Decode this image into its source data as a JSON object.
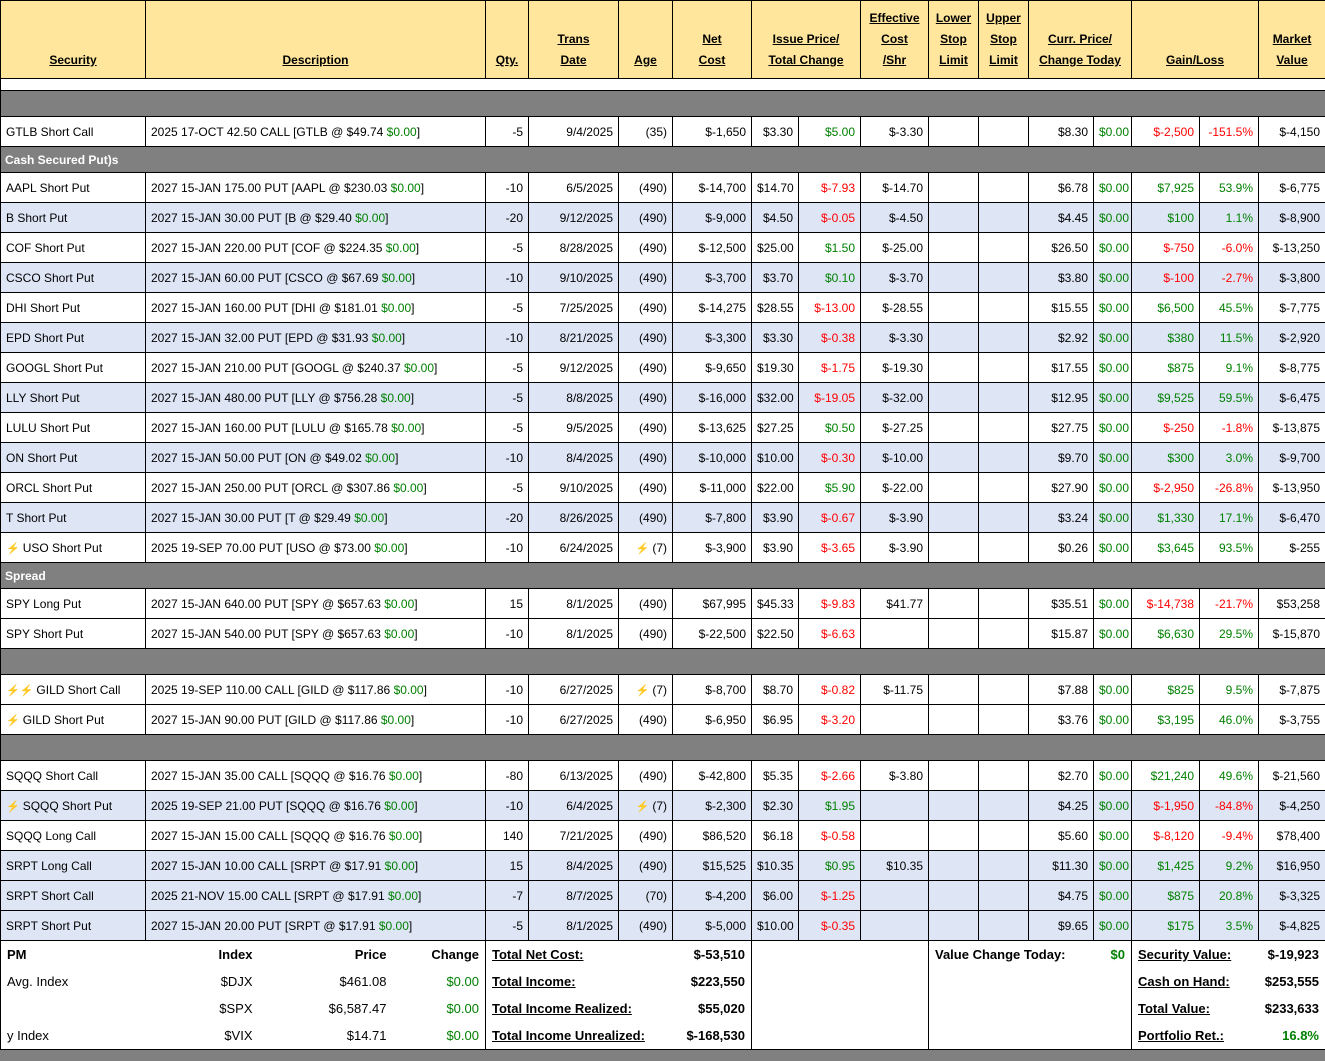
{
  "columns": {
    "security": "Security",
    "description": "Description",
    "qty": "Qty.",
    "trans_date": "Trans\nDate",
    "age": "Age",
    "net_cost": "Net\nCost",
    "issue_price": "Issue Price/\nTotal Change",
    "eff_cost": "Effective\nCost\n/Shr",
    "lower_stop": "Lower\nStop\nLimit",
    "upper_stop": "Upper\nStop\nLimit",
    "curr_price": "Curr. Price/\nChange Today",
    "gain_loss": "Gain/Loss",
    "market_value": "Market\nValue"
  },
  "icons": {
    "alert": "lightning-bolt-icon"
  },
  "colors": {
    "header_bg": "#FFE69C",
    "section_bg": "#808080",
    "row_alt_bg": "#DEE6F6",
    "positive": "#008000",
    "negative": "#FF0000",
    "bolt": "#F5A623"
  },
  "body": [
    {
      "type": "spacer",
      "label": ""
    },
    {
      "type": "section",
      "label": ""
    },
    {
      "type": "row",
      "shade": "w",
      "bolts": 0,
      "sec": "GTLB Short Call",
      "d1": "2025 17-OCT 42.50 CALL [GTLB @ $49.74 ",
      "d2": "$0.00",
      "d3": "]",
      "qty": "-5",
      "date": "9/4/2025",
      "agebolt": false,
      "age": "(35)",
      "net": "$-1,650",
      "ip": "$3.30",
      "tc": "$5.00",
      "ec": "$-3.30",
      "ls": "",
      "us": "",
      "cp": "$8.30",
      "ct": "$0.00",
      "gl": "$-2,500",
      "glp": "-151.5%",
      "mv": "$-4,150"
    },
    {
      "type": "section",
      "label": "Cash Secured Put)s"
    },
    {
      "type": "row",
      "shade": "w",
      "bolts": 0,
      "sec": "AAPL Short Put",
      "d1": "2027 15-JAN 175.00 PUT [AAPL @ $230.03 ",
      "d2": "$0.00",
      "d3": "]",
      "qty": "-10",
      "date": "6/5/2025",
      "agebolt": false,
      "age": "(490)",
      "net": "$-14,700",
      "ip": "$14.70",
      "tc": "$-7.93",
      "ec": "$-14.70",
      "ls": "",
      "us": "",
      "cp": "$6.78",
      "ct": "$0.00",
      "gl": "$7,925",
      "glp": "53.9%",
      "mv": "$-6,775"
    },
    {
      "type": "row",
      "shade": "b",
      "bolts": 0,
      "sec": "B Short Put",
      "d1": "2027 15-JAN 30.00 PUT [B @ $29.40 ",
      "d2": "$0.00",
      "d3": "]",
      "qty": "-20",
      "date": "9/12/2025",
      "agebolt": false,
      "age": "(490)",
      "net": "$-9,000",
      "ip": "$4.50",
      "tc": "$-0.05",
      "ec": "$-4.50",
      "ls": "",
      "us": "",
      "cp": "$4.45",
      "ct": "$0.00",
      "gl": "$100",
      "glp": "1.1%",
      "mv": "$-8,900"
    },
    {
      "type": "row",
      "shade": "w",
      "bolts": 0,
      "sec": "COF Short Put",
      "d1": "2027 15-JAN 220.00 PUT [COF @ $224.35 ",
      "d2": "$0.00",
      "d3": "]",
      "qty": "-5",
      "date": "8/28/2025",
      "agebolt": false,
      "age": "(490)",
      "net": "$-12,500",
      "ip": "$25.00",
      "tc": "$1.50",
      "ec": "$-25.00",
      "ls": "",
      "us": "",
      "cp": "$26.50",
      "ct": "$0.00",
      "gl": "$-750",
      "glp": "-6.0%",
      "mv": "$-13,250"
    },
    {
      "type": "row",
      "shade": "b",
      "bolts": 0,
      "sec": "CSCO Short Put",
      "d1": "2027 15-JAN 60.00 PUT [CSCO @ $67.69 ",
      "d2": "$0.00",
      "d3": "]",
      "qty": "-10",
      "date": "9/10/2025",
      "agebolt": false,
      "age": "(490)",
      "net": "$-3,700",
      "ip": "$3.70",
      "tc": "$0.10",
      "ec": "$-3.70",
      "ls": "",
      "us": "",
      "cp": "$3.80",
      "ct": "$0.00",
      "gl": "$-100",
      "glp": "-2.7%",
      "mv": "$-3,800"
    },
    {
      "type": "row",
      "shade": "w",
      "bolts": 0,
      "sec": "DHI Short Put",
      "d1": "2027 15-JAN 160.00 PUT [DHI @ $181.01 ",
      "d2": "$0.00",
      "d3": "]",
      "qty": "-5",
      "date": "7/25/2025",
      "agebolt": false,
      "age": "(490)",
      "net": "$-14,275",
      "ip": "$28.55",
      "tc": "$-13.00",
      "ec": "$-28.55",
      "ls": "",
      "us": "",
      "cp": "$15.55",
      "ct": "$0.00",
      "gl": "$6,500",
      "glp": "45.5%",
      "mv": "$-7,775"
    },
    {
      "type": "row",
      "shade": "b",
      "bolts": 0,
      "sec": "EPD Short Put",
      "d1": "2027 15-JAN 32.00 PUT [EPD @ $31.93 ",
      "d2": "$0.00",
      "d3": "]",
      "qty": "-10",
      "date": "8/21/2025",
      "agebolt": false,
      "age": "(490)",
      "net": "$-3,300",
      "ip": "$3.30",
      "tc": "$-0.38",
      "ec": "$-3.30",
      "ls": "",
      "us": "",
      "cp": "$2.92",
      "ct": "$0.00",
      "gl": "$380",
      "glp": "11.5%",
      "mv": "$-2,920"
    },
    {
      "type": "row",
      "shade": "w",
      "bolts": 0,
      "sec": "GOOGL Short Put",
      "d1": "2027 15-JAN 210.00 PUT [GOOGL @ $240.37 ",
      "d2": "$0.00",
      "d3": "]",
      "qty": "-5",
      "date": "9/12/2025",
      "agebolt": false,
      "age": "(490)",
      "net": "$-9,650",
      "ip": "$19.30",
      "tc": "$-1.75",
      "ec": "$-19.30",
      "ls": "",
      "us": "",
      "cp": "$17.55",
      "ct": "$0.00",
      "gl": "$875",
      "glp": "9.1%",
      "mv": "$-8,775"
    },
    {
      "type": "row",
      "shade": "b",
      "bolts": 0,
      "sec": "LLY Short Put",
      "d1": "2027 15-JAN 480.00 PUT [LLY @ $756.28 ",
      "d2": "$0.00",
      "d3": "]",
      "qty": "-5",
      "date": "8/8/2025",
      "agebolt": false,
      "age": "(490)",
      "net": "$-16,000",
      "ip": "$32.00",
      "tc": "$-19.05",
      "ec": "$-32.00",
      "ls": "",
      "us": "",
      "cp": "$12.95",
      "ct": "$0.00",
      "gl": "$9,525",
      "glp": "59.5%",
      "mv": "$-6,475"
    },
    {
      "type": "row",
      "shade": "w",
      "bolts": 0,
      "sec": "LULU Short Put",
      "d1": "2027 15-JAN 160.00 PUT [LULU @ $165.78 ",
      "d2": "$0.00",
      "d3": "]",
      "qty": "-5",
      "date": "9/5/2025",
      "agebolt": false,
      "age": "(490)",
      "net": "$-13,625",
      "ip": "$27.25",
      "tc": "$0.50",
      "ec": "$-27.25",
      "ls": "",
      "us": "",
      "cp": "$27.75",
      "ct": "$0.00",
      "gl": "$-250",
      "glp": "-1.8%",
      "mv": "$-13,875"
    },
    {
      "type": "row",
      "shade": "b",
      "bolts": 0,
      "sec": "ON Short Put",
      "d1": "2027 15-JAN 50.00 PUT [ON @ $49.02 ",
      "d2": "$0.00",
      "d3": "]",
      "qty": "-10",
      "date": "8/4/2025",
      "agebolt": false,
      "age": "(490)",
      "net": "$-10,000",
      "ip": "$10.00",
      "tc": "$-0.30",
      "ec": "$-10.00",
      "ls": "",
      "us": "",
      "cp": "$9.70",
      "ct": "$0.00",
      "gl": "$300",
      "glp": "3.0%",
      "mv": "$-9,700"
    },
    {
      "type": "row",
      "shade": "w",
      "bolts": 0,
      "sec": "ORCL Short Put",
      "d1": "2027 15-JAN 250.00 PUT [ORCL @ $307.86 ",
      "d2": "$0.00",
      "d3": "]",
      "qty": "-5",
      "date": "9/10/2025",
      "agebolt": false,
      "age": "(490)",
      "net": "$-11,000",
      "ip": "$22.00",
      "tc": "$5.90",
      "ec": "$-22.00",
      "ls": "",
      "us": "",
      "cp": "$27.90",
      "ct": "$0.00",
      "gl": "$-2,950",
      "glp": "-26.8%",
      "mv": "$-13,950"
    },
    {
      "type": "row",
      "shade": "b",
      "bolts": 0,
      "sec": "T Short Put",
      "d1": "2027 15-JAN 30.00 PUT [T @ $29.49 ",
      "d2": "$0.00",
      "d3": "]",
      "qty": "-20",
      "date": "8/26/2025",
      "agebolt": false,
      "age": "(490)",
      "net": "$-7,800",
      "ip": "$3.90",
      "tc": "$-0.67",
      "ec": "$-3.90",
      "ls": "",
      "us": "",
      "cp": "$3.24",
      "ct": "$0.00",
      "gl": "$1,330",
      "glp": "17.1%",
      "mv": "$-6,470"
    },
    {
      "type": "row",
      "shade": "w",
      "bolts": 1,
      "sec": "USO Short Put",
      "d1": "2025 19-SEP 70.00 PUT [USO @ $73.00 ",
      "d2": "$0.00",
      "d3": "]",
      "qty": "-10",
      "date": "6/24/2025",
      "agebolt": true,
      "age": "(7)",
      "net": "$-3,900",
      "ip": "$3.90",
      "tc": "$-3.65",
      "ec": "$-3.90",
      "ls": "",
      "us": "",
      "cp": "$0.26",
      "ct": "$0.00",
      "gl": "$3,645",
      "glp": "93.5%",
      "mv": "$-255"
    },
    {
      "type": "section",
      "label": "Spread"
    },
    {
      "type": "row",
      "shade": "w",
      "bolts": 0,
      "sec": "SPY Long Put",
      "d1": "2027 15-JAN 640.00 PUT [SPY @ $657.63 ",
      "d2": "$0.00",
      "d3": "]",
      "qty": "15",
      "date": "8/1/2025",
      "agebolt": false,
      "age": "(490)",
      "net": "$67,995",
      "ip": "$45.33",
      "tc": "$-9.83",
      "ec": "$41.77",
      "ls": "",
      "us": "",
      "cp": "$35.51",
      "ct": "$0.00",
      "gl": "$-14,738",
      "glp": "-21.7%",
      "mv": "$53,258"
    },
    {
      "type": "row",
      "shade": "w",
      "bolts": 0,
      "sec": "SPY Short Put",
      "d1": "2027 15-JAN 540.00 PUT [SPY @ $657.63 ",
      "d2": "$0.00",
      "d3": "]",
      "qty": "-10",
      "date": "8/1/2025",
      "agebolt": false,
      "age": "(490)",
      "net": "$-22,500",
      "ip": "$22.50",
      "tc": "$-6.63",
      "ec": "",
      "ls": "",
      "us": "",
      "cp": "$15.87",
      "ct": "$0.00",
      "gl": "$6,630",
      "glp": "29.5%",
      "mv": "$-15,870"
    },
    {
      "type": "section",
      "label": ""
    },
    {
      "type": "row",
      "shade": "w",
      "bolts": 2,
      "sec": "GILD Short Call",
      "d1": "2025 19-SEP 110.00 CALL [GILD @ $117.86 ",
      "d2": "$0.00",
      "d3": "]",
      "qty": "-10",
      "date": "6/27/2025",
      "agebolt": true,
      "age": "(7)",
      "net": "$-8,700",
      "ip": "$8.70",
      "tc": "$-0.82",
      "ec": "$-11.75",
      "ls": "",
      "us": "",
      "cp": "$7.88",
      "ct": "$0.00",
      "gl": "$825",
      "glp": "9.5%",
      "mv": "$-7,875"
    },
    {
      "type": "row",
      "shade": "w",
      "bolts": 1,
      "sec": "GILD Short Put",
      "d1": "2027 15-JAN 90.00 PUT [GILD @ $117.86 ",
      "d2": "$0.00",
      "d3": "]",
      "qty": "-10",
      "date": "6/27/2025",
      "agebolt": false,
      "age": "(490)",
      "net": "$-6,950",
      "ip": "$6.95",
      "tc": "$-3.20",
      "ec": "",
      "ls": "",
      "us": "",
      "cp": "$3.76",
      "ct": "$0.00",
      "gl": "$3,195",
      "glp": "46.0%",
      "mv": "$-3,755"
    },
    {
      "type": "section",
      "label": ""
    },
    {
      "type": "row",
      "shade": "w",
      "bolts": 0,
      "sec": "SQQQ Short Call",
      "d1": "2027 15-JAN 35.00 CALL [SQQQ @ $16.76 ",
      "d2": "$0.00",
      "d3": "]",
      "qty": "-80",
      "date": "6/13/2025",
      "agebolt": false,
      "age": "(490)",
      "net": "$-42,800",
      "ip": "$5.35",
      "tc": "$-2.66",
      "ec": "$-3.80",
      "ls": "",
      "us": "",
      "cp": "$2.70",
      "ct": "$0.00",
      "gl": "$21,240",
      "glp": "49.6%",
      "mv": "$-21,560"
    },
    {
      "type": "row",
      "shade": "b",
      "bolts": 1,
      "sec": "SQQQ Short Put",
      "d1": "2025 19-SEP 21.00 PUT [SQQQ @ $16.76 ",
      "d2": "$0.00",
      "d3": "]",
      "qty": "-10",
      "date": "6/4/2025",
      "agebolt": true,
      "age": "(7)",
      "net": "$-2,300",
      "ip": "$2.30",
      "tc": "$1.95",
      "ec": "",
      "ls": "",
      "us": "",
      "cp": "$4.25",
      "ct": "$0.00",
      "gl": "$-1,950",
      "glp": "-84.8%",
      "mv": "$-4,250"
    },
    {
      "type": "row",
      "shade": "w",
      "bolts": 0,
      "sec": "SQQQ Long Call",
      "d1": "2027 15-JAN 15.00 CALL [SQQQ @ $16.76 ",
      "d2": "$0.00",
      "d3": "]",
      "qty": "140",
      "date": "7/21/2025",
      "agebolt": false,
      "age": "(490)",
      "net": "$86,520",
      "ip": "$6.18",
      "tc": "$-0.58",
      "ec": "",
      "ls": "",
      "us": "",
      "cp": "$5.60",
      "ct": "$0.00",
      "gl": "$-8,120",
      "glp": "-9.4%",
      "mv": "$78,400"
    },
    {
      "type": "row",
      "shade": "b",
      "bolts": 0,
      "sec": "SRPT Long Call",
      "d1": "2027 15-JAN 10.00 CALL [SRPT @ $17.91 ",
      "d2": "$0.00",
      "d3": "]",
      "qty": "15",
      "date": "8/4/2025",
      "agebolt": false,
      "age": "(490)",
      "net": "$15,525",
      "ip": "$10.35",
      "tc": "$0.95",
      "ec": "$10.35",
      "ls": "",
      "us": "",
      "cp": "$11.30",
      "ct": "$0.00",
      "gl": "$1,425",
      "glp": "9.2%",
      "mv": "$16,950"
    },
    {
      "type": "row",
      "shade": "b",
      "bolts": 0,
      "sec": "SRPT Short Call",
      "d1": "2025 21-NOV 15.00 CALL [SRPT @ $17.91 ",
      "d2": "$0.00",
      "d3": "]",
      "qty": "-7",
      "date": "8/7/2025",
      "agebolt": false,
      "age": "(70)",
      "net": "$-4,200",
      "ip": "$6.00",
      "tc": "$-1.25",
      "ec": "",
      "ls": "",
      "us": "",
      "cp": "$4.75",
      "ct": "$0.00",
      "gl": "$875",
      "glp": "20.8%",
      "mv": "$-3,325"
    },
    {
      "type": "row",
      "shade": "b",
      "bolts": 0,
      "sec": "SRPT Short Put",
      "d1": "2027 15-JAN 20.00 PUT [SRPT @ $17.91 ",
      "d2": "$0.00",
      "d3": "]",
      "qty": "-5",
      "date": "8/1/2025",
      "agebolt": false,
      "age": "(490)",
      "net": "$-5,000",
      "ip": "$10.00",
      "tc": "$-0.35",
      "ec": "",
      "ls": "",
      "us": "",
      "cp": "$9.65",
      "ct": "$0.00",
      "gl": "$175",
      "glp": "3.5%",
      "mv": "$-4,825"
    }
  ],
  "footer": {
    "pm": "PM",
    "index_header": "Index",
    "price_header": "Price",
    "change_header": "Change",
    "indices": [
      {
        "name": "Avg. Index",
        "symbol": "$DJX",
        "price": "$461.08",
        "change": "$0.00"
      },
      {
        "name": "",
        "symbol": "$SPX",
        "price": "$6,587.47",
        "change": "$0.00"
      },
      {
        "name": "y Index",
        "symbol": "$VIX",
        "price": "$14.71",
        "change": "$0.00"
      }
    ],
    "totals": [
      {
        "label": "Total Net Cost:",
        "value": "$-53,510"
      },
      {
        "label": "Total Income:",
        "value": "$223,550"
      },
      {
        "label": "Total Income Realized:",
        "value": "$55,020"
      },
      {
        "label": "Total Income Unrealized:",
        "value": "$-168,530"
      }
    ],
    "value_change_label": "Value Change Today:",
    "value_change": "$0",
    "summary": [
      {
        "label": "Security Value:",
        "value": "$-19,923"
      },
      {
        "label": "Cash on Hand:",
        "value": "$253,555"
      },
      {
        "label": "Total Value:",
        "value": "$233,633"
      },
      {
        "label": "Portfolio Ret.:",
        "value": "16.8%"
      }
    ]
  }
}
